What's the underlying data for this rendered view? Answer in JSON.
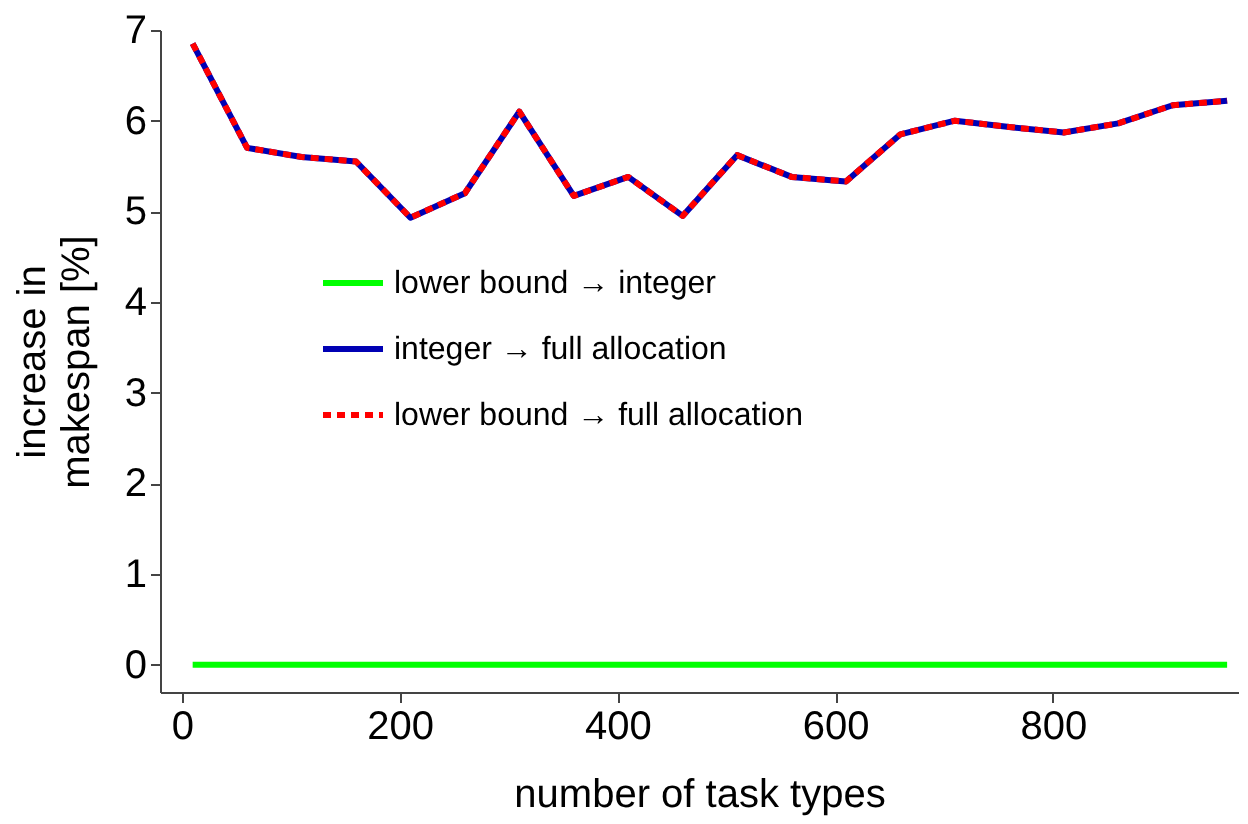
{
  "chart_data": {
    "type": "line",
    "xlabel": "number of task types",
    "ylabel": "increase in makespan [%]",
    "x": [
      10,
      60,
      110,
      160,
      210,
      260,
      310,
      360,
      410,
      460,
      510,
      560,
      610,
      660,
      710,
      760,
      810,
      860,
      910,
      960
    ],
    "series": [
      {
        "name": "lower bound → integer",
        "color": "#00ff00",
        "line_style": "solid",
        "values": [
          0,
          0,
          0,
          0,
          0,
          0,
          0,
          0,
          0,
          0,
          0,
          0,
          0,
          0,
          0,
          0,
          0,
          0,
          0,
          0
        ]
      },
      {
        "name": "integer → full allocation",
        "color": "#0000b4",
        "line_style": "solid",
        "values": [
          6.85,
          5.7,
          5.6,
          5.55,
          4.93,
          5.2,
          6.1,
          5.17,
          5.38,
          4.95,
          5.62,
          5.38,
          5.33,
          5.85,
          6.0,
          5.93,
          5.87,
          5.97,
          6.17,
          6.22
        ]
      },
      {
        "name": "lower bound → full allocation",
        "color": "#ff0000",
        "line_style": "dotted",
        "values": [
          6.85,
          5.7,
          5.6,
          5.55,
          4.93,
          5.2,
          6.1,
          5.17,
          5.38,
          4.95,
          5.62,
          5.38,
          5.33,
          5.85,
          6.0,
          5.93,
          5.87,
          5.97,
          6.17,
          6.22
        ]
      }
    ],
    "xlim": [
      -20,
      970
    ],
    "ylim": [
      -0.3,
      7
    ],
    "xticks": [
      0,
      200,
      400,
      600,
      800
    ],
    "yticks": [
      0,
      1,
      2,
      3,
      4,
      5,
      6,
      7
    ],
    "grid": false,
    "legend": "left",
    "marker": "none"
  }
}
